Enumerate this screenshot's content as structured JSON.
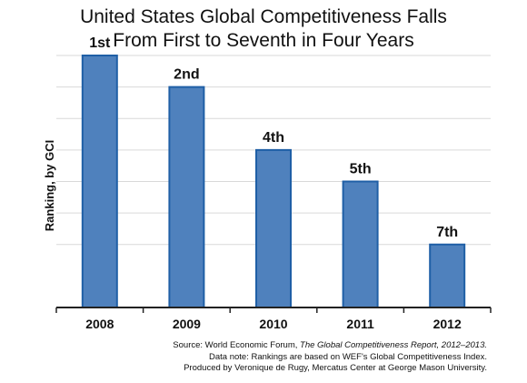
{
  "chart_data": {
    "type": "bar",
    "title_lines": [
      "United States Global Competitiveness Falls",
      "From First to Seventh in Four Years"
    ],
    "ylabel": "Ranking, by GCI",
    "xlabel": "",
    "categories": [
      "2008",
      "2009",
      "2010",
      "2011",
      "2012"
    ],
    "values": [
      1,
      2,
      4,
      5,
      7
    ],
    "data_labels": [
      "1st",
      "2nd",
      "4th",
      "5th",
      "7th"
    ],
    "y_axis": "reversed rank, 1 = highest bar",
    "grid": true,
    "bar_color": "#4f81bd",
    "bar_edge_color": "#1f5fa6"
  },
  "footer": {
    "line1_prefix": "Source: World Economic Forum, ",
    "line1_title": "The Global Competitiveness Report, 2012–2013.",
    "line2": "Data note: Rankings are based on WEF's Global Competitiveness Index.",
    "line3": "Produced by Veronique de Rugy, Mercatus Center at George Mason University."
  }
}
